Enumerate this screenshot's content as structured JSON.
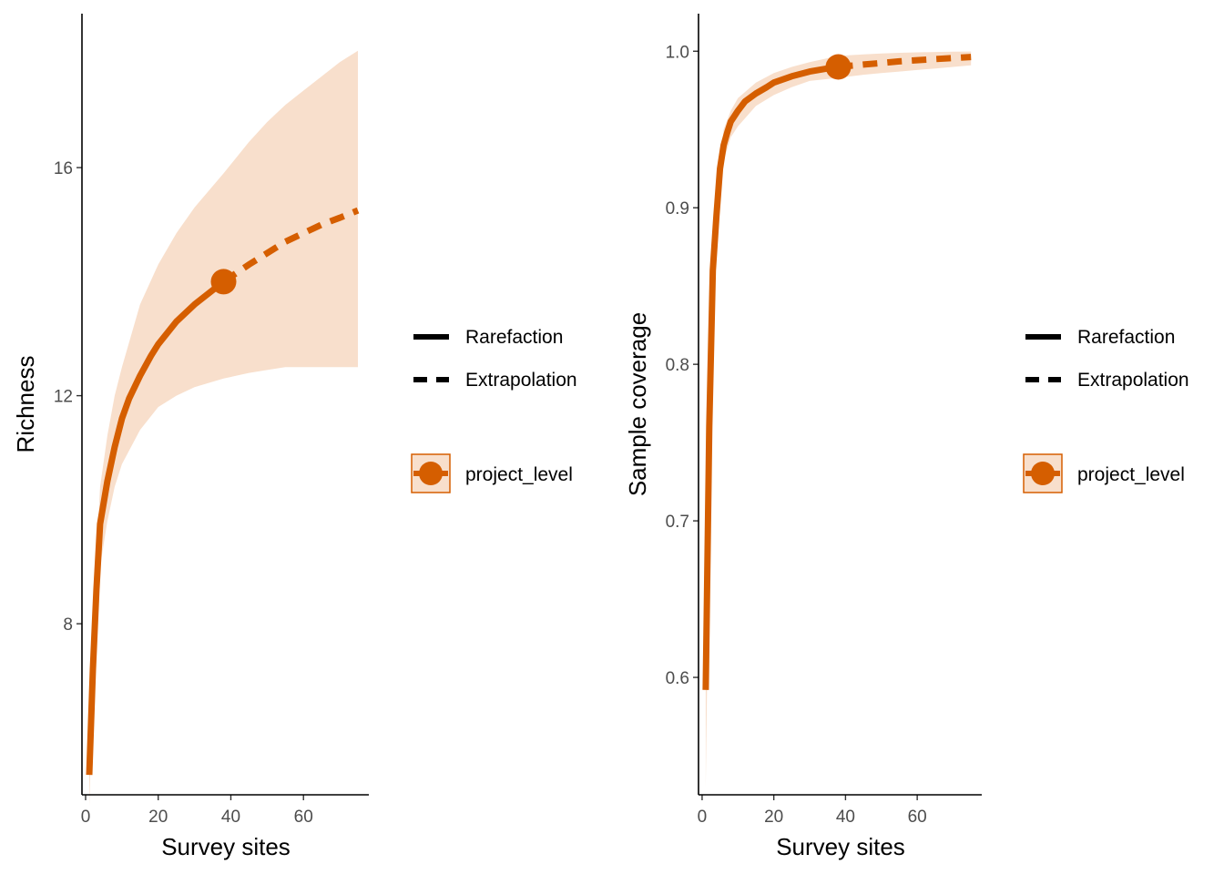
{
  "colors": {
    "series": "#d55e00",
    "band": "#f8dfcc",
    "axis": "#000000",
    "tick_text": "#4d4d4d"
  },
  "legend": {
    "rarefaction_label": "Rarefaction",
    "extrapolation_label": "Extrapolation",
    "assemblage_label": "project_level"
  },
  "chart_data": [
    {
      "type": "line",
      "xlabel": "Survey sites",
      "ylabel": "Richness",
      "xlim": [
        -1,
        78
      ],
      "ylim": [
        5.0,
        18.7
      ],
      "x_ticks": [
        0,
        20,
        40,
        60
      ],
      "y_ticks": [
        8,
        12,
        16
      ],
      "grid": false,
      "legend_position": "right",
      "observed_point": {
        "x": 38,
        "y": 14.0
      },
      "series": [
        {
          "name": "project_level",
          "rarefaction": {
            "x": [
              1,
              2,
              3,
              4,
              6,
              8,
              10,
              12,
              15,
              18,
              20,
              25,
              30,
              35,
              38
            ],
            "y": [
              5.35,
              7.2,
              8.6,
              9.75,
              10.5,
              11.1,
              11.6,
              11.95,
              12.35,
              12.7,
              12.9,
              13.3,
              13.6,
              13.85,
              14.0
            ]
          },
          "extrapolation": {
            "x": [
              38,
              45,
              50,
              55,
              60,
              65,
              70,
              75
            ],
            "y": [
              14.0,
              14.3,
              14.5,
              14.7,
              14.85,
              15.0,
              15.12,
              15.25
            ]
          },
          "ci_band": {
            "x": [
              1,
              2,
              3,
              4,
              6,
              8,
              10,
              15,
              20,
              25,
              30,
              38,
              45,
              50,
              55,
              60,
              65,
              70,
              75
            ],
            "lower": [
              4.8,
              6.8,
              8.0,
              9.0,
              9.8,
              10.4,
              10.8,
              11.4,
              11.8,
              12.0,
              12.15,
              12.3,
              12.4,
              12.45,
              12.5,
              12.5,
              12.5,
              12.5,
              12.5
            ],
            "upper": [
              5.9,
              7.6,
              9.2,
              10.4,
              11.3,
              12.0,
              12.5,
              13.6,
              14.3,
              14.85,
              15.3,
              15.9,
              16.45,
              16.8,
              17.1,
              17.35,
              17.6,
              17.85,
              18.05
            ]
          }
        }
      ]
    },
    {
      "type": "line",
      "xlabel": "Survey sites",
      "ylabel": "Sample coverage",
      "xlim": [
        -1,
        78
      ],
      "ylim": [
        0.525,
        1.024
      ],
      "x_ticks": [
        0,
        20,
        40,
        60
      ],
      "y_ticks": [
        0.6,
        0.7,
        0.8,
        0.9,
        1.0
      ],
      "y_tick_labels": [
        "0.6",
        "0.7",
        "0.8",
        "0.9",
        "1.0"
      ],
      "grid": false,
      "legend_position": "right",
      "observed_point": {
        "x": 38,
        "y": 0.99
      },
      "series": [
        {
          "name": "project_level",
          "rarefaction": {
            "x": [
              1,
              2,
              3,
              4,
              5,
              6,
              7,
              8,
              10,
              12,
              15,
              18,
              20,
              25,
              30,
              35,
              38
            ],
            "y": [
              0.592,
              0.76,
              0.86,
              0.895,
              0.925,
              0.94,
              0.948,
              0.955,
              0.962,
              0.968,
              0.973,
              0.977,
              0.98,
              0.984,
              0.987,
              0.989,
              0.99
            ]
          },
          "extrapolation": {
            "x": [
              38,
              45,
              50,
              55,
              60,
              65,
              70,
              75
            ],
            "y": [
              0.99,
              0.9915,
              0.9925,
              0.9935,
              0.9943,
              0.995,
              0.9957,
              0.9963
            ]
          },
          "ci_band": {
            "x": [
              1,
              2,
              3,
              4,
              6,
              8,
              10,
              15,
              20,
              25,
              30,
              38,
              45,
              50,
              55,
              60,
              65,
              70,
              75
            ],
            "lower": [
              0.53,
              0.7,
              0.84,
              0.88,
              0.93,
              0.945,
              0.952,
              0.965,
              0.972,
              0.977,
              0.981,
              0.983,
              0.985,
              0.986,
              0.987,
              0.988,
              0.989,
              0.99,
              0.991
            ],
            "upper": [
              0.66,
              0.8,
              0.88,
              0.91,
              0.95,
              0.962,
              0.97,
              0.98,
              0.986,
              0.99,
              0.993,
              0.997,
              0.998,
              0.9985,
              0.999,
              0.9993,
              0.9995,
              0.9997,
              0.9998
            ]
          }
        }
      ]
    }
  ]
}
